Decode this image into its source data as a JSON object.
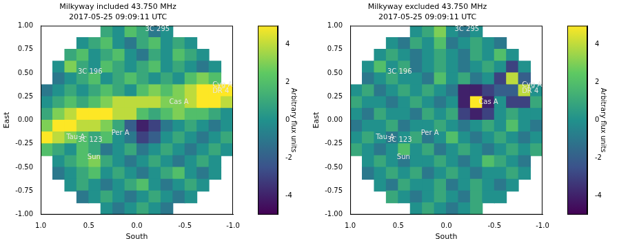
{
  "chart_data": [
    {
      "type": "heatmap",
      "title": "Milkyway included 43.750 MHz",
      "subtitle": "2017-05-25 09:09:11 UTC",
      "x_label": "South",
      "y_label": "East",
      "xlim": [
        1,
        -1
      ],
      "ylim": [
        -1,
        1
      ],
      "xticks": [
        {
          "value": 1,
          "label": "1.0"
        },
        {
          "value": 0.5,
          "label": "0.5"
        },
        {
          "value": 0,
          "label": "0.0"
        },
        {
          "value": -0.5,
          "label": "-0.5"
        },
        {
          "value": -1,
          "label": "-1.0"
        }
      ],
      "yticks": [
        {
          "value": -1,
          "label": "-1.00"
        },
        {
          "value": -0.75,
          "label": "-0.75"
        },
        {
          "value": -0.5,
          "label": "-0.50"
        },
        {
          "value": -0.25,
          "label": "-0.25"
        },
        {
          "value": 0,
          "label": "0.00"
        },
        {
          "value": 0.25,
          "label": "0.25"
        },
        {
          "value": 0.5,
          "label": "0.50"
        },
        {
          "value": 0.75,
          "label": "0.75"
        },
        {
          "value": 1,
          "label": "1.00"
        }
      ],
      "grid": false,
      "cell_x": [
        0.9375,
        0.8125,
        0.6875,
        0.5625,
        0.4375,
        0.3125,
        0.1875,
        0.0625,
        -0.0625,
        -0.1875,
        -0.3125,
        -0.4375,
        -0.5625,
        -0.6875,
        -0.8125,
        -0.9375
      ],
      "cell_y": [
        0.9375,
        0.8125,
        0.6875,
        0.5625,
        0.4375,
        0.3125,
        0.1875,
        0.0625,
        -0.0625,
        -0.1875,
        -0.3125,
        -0.4375,
        -0.5625,
        -0.6875,
        -0.8125,
        -0.9375
      ],
      "cells": [
        [
          null,
          null,
          null,
          null,
          null,
          1,
          0,
          2,
          1,
          -1,
          0,
          null,
          null,
          null,
          null,
          null
        ],
        [
          null,
          null,
          null,
          0,
          1,
          2,
          0,
          -1,
          1,
          2,
          0,
          1,
          0,
          null,
          null,
          null
        ],
        [
          null,
          null,
          1,
          2,
          0,
          1,
          2,
          0,
          -1,
          1,
          0,
          2,
          1,
          0,
          null,
          null
        ],
        [
          null,
          0,
          3,
          1,
          0,
          2,
          1,
          0,
          1,
          2,
          0,
          1,
          0,
          -1,
          0,
          null
        ],
        [
          null,
          -1,
          0,
          1,
          2,
          0,
          1,
          2,
          1,
          0,
          1,
          0,
          2,
          3,
          2,
          null
        ],
        [
          -1,
          0,
          1,
          0,
          1,
          2,
          1,
          0,
          2,
          3,
          2,
          3,
          4,
          5,
          5,
          5
        ],
        [
          0,
          1,
          2,
          1,
          2,
          3,
          4,
          4,
          4,
          4,
          3,
          3,
          4,
          5,
          5,
          4
        ],
        [
          1,
          3,
          4,
          5,
          5,
          5,
          4,
          4,
          2,
          1,
          2,
          3,
          2,
          2,
          1,
          0
        ],
        [
          3,
          5,
          5,
          4,
          4,
          3,
          1,
          -2,
          -4,
          -3,
          -1,
          0,
          1,
          0,
          -1,
          0
        ],
        [
          5,
          4,
          3,
          2,
          1,
          2,
          0,
          -1,
          -3,
          -2,
          0,
          1,
          0,
          -1,
          0,
          1
        ],
        [
          2,
          1,
          0,
          2,
          1,
          -1,
          0,
          1,
          -1,
          0,
          1,
          0,
          -1,
          0,
          1,
          0
        ],
        [
          null,
          0,
          1,
          2,
          3,
          1,
          0,
          -1,
          0,
          1,
          0,
          -1,
          0,
          1,
          0,
          null
        ],
        [
          null,
          -1,
          0,
          1,
          2,
          0,
          1,
          0,
          -1,
          0,
          1,
          2,
          0,
          -1,
          0,
          null
        ],
        [
          null,
          null,
          0,
          1,
          0,
          -1,
          0,
          1,
          2,
          0,
          -1,
          0,
          1,
          0,
          null,
          null
        ],
        [
          null,
          null,
          null,
          -1,
          0,
          1,
          0,
          -1,
          0,
          1,
          0,
          -1,
          0,
          null,
          null,
          null
        ],
        [
          null,
          null,
          null,
          null,
          null,
          0,
          -1,
          0,
          1,
          0,
          -1,
          null,
          null,
          null,
          null,
          null
        ]
      ],
      "colorbar": {
        "label": "Arbitrary flux units",
        "range": [
          -5,
          5
        ],
        "ticks": [
          -4,
          -2,
          0,
          2,
          4
        ]
      },
      "sources": [
        {
          "name": "3C 295",
          "x": -0.05,
          "y": 0.96
        },
        {
          "name": "3C 196",
          "x": 0.65,
          "y": 0.51
        },
        {
          "name": "Cas A",
          "x": -0.3,
          "y": 0.19
        },
        {
          "name": "Cyg A",
          "x": -0.75,
          "y": 0.37
        },
        {
          "name": "DR 4",
          "x": -0.75,
          "y": 0.31
        },
        {
          "name": "Tau A",
          "x": 0.77,
          "y": -0.18
        },
        {
          "name": "3C 123",
          "x": 0.65,
          "y": -0.21
        },
        {
          "name": "Per A",
          "x": 0.3,
          "y": -0.14
        },
        {
          "name": "Sun",
          "x": 0.55,
          "y": -0.39
        }
      ]
    },
    {
      "type": "heatmap",
      "title": "Milkyway excluded 43.750 MHz",
      "subtitle": "2017-05-25 09:09:11 UTC",
      "x_label": "South",
      "y_label": "East",
      "xlim": [
        1,
        -1
      ],
      "ylim": [
        -1,
        1
      ],
      "xticks": [
        {
          "value": 1,
          "label": "1.0"
        },
        {
          "value": 0.5,
          "label": "0.5"
        },
        {
          "value": 0,
          "label": "0.0"
        },
        {
          "value": -0.5,
          "label": "-0.5"
        },
        {
          "value": -1,
          "label": "-1.0"
        }
      ],
      "yticks": [
        {
          "value": -1,
          "label": "-1.00"
        },
        {
          "value": -0.75,
          "label": "-0.75"
        },
        {
          "value": -0.5,
          "label": "-0.50"
        },
        {
          "value": -0.25,
          "label": "-0.25"
        },
        {
          "value": 0,
          "label": "0.00"
        },
        {
          "value": 0.25,
          "label": "0.25"
        },
        {
          "value": 0.5,
          "label": "0.50"
        },
        {
          "value": 0.75,
          "label": "0.75"
        },
        {
          "value": 1,
          "label": "1.00"
        }
      ],
      "grid": false,
      "cell_x": [
        0.9375,
        0.8125,
        0.6875,
        0.5625,
        0.4375,
        0.3125,
        0.1875,
        0.0625,
        -0.0625,
        -0.1875,
        -0.3125,
        -0.4375,
        -0.5625,
        -0.6875,
        -0.8125,
        -0.9375
      ],
      "cell_y": [
        0.9375,
        0.8125,
        0.6875,
        0.5625,
        0.4375,
        0.3125,
        0.1875,
        0.0625,
        -0.0625,
        -0.1875,
        -0.3125,
        -0.4375,
        -0.5625,
        -0.6875,
        -0.8125,
        -0.9375
      ],
      "cells": [
        [
          null,
          null,
          null,
          null,
          null,
          0,
          1,
          3,
          0,
          -1,
          0,
          null,
          null,
          null,
          null,
          null
        ],
        [
          null,
          null,
          null,
          0,
          -1,
          1,
          0,
          2,
          -1,
          0,
          1,
          0,
          -1,
          null,
          null,
          null
        ],
        [
          null,
          null,
          0,
          1,
          0,
          -1,
          0,
          1,
          0,
          -1,
          1,
          0,
          2,
          0,
          null,
          null
        ],
        [
          null,
          0,
          2,
          0,
          1,
          -1,
          0,
          1,
          0,
          -1,
          0,
          1,
          0,
          -3,
          0,
          null
        ],
        [
          null,
          -1,
          0,
          1,
          0,
          0,
          -1,
          2,
          0,
          1,
          -1,
          0,
          -3,
          4,
          -2,
          null
        ],
        [
          0,
          1,
          -1,
          0,
          1,
          0,
          1,
          0,
          -1,
          -4,
          -4,
          -3,
          -2,
          -2,
          4,
          0
        ],
        [
          1,
          0,
          0,
          -1,
          0,
          1,
          0,
          -1,
          0,
          -4,
          5,
          -4,
          0,
          -3,
          -3,
          1
        ],
        [
          0,
          -1,
          1,
          0,
          0,
          -1,
          1,
          0,
          1,
          -3,
          -4,
          -3,
          0,
          1,
          0,
          0
        ],
        [
          -1,
          0,
          0,
          1,
          -1,
          0,
          0,
          1,
          0,
          -1,
          0,
          1,
          0,
          2,
          0,
          -1
        ],
        [
          0,
          1,
          0,
          -1,
          0,
          1,
          -1,
          0,
          2,
          0,
          -1,
          0,
          1,
          0,
          -1,
          0
        ],
        [
          1,
          0,
          -1,
          0,
          2,
          0,
          1,
          -1,
          0,
          1,
          0,
          -1,
          0,
          1,
          0,
          1
        ],
        [
          null,
          0,
          1,
          0,
          -1,
          0,
          0,
          1,
          0,
          -1,
          0,
          2,
          1,
          0,
          -1,
          null
        ],
        [
          null,
          -1,
          0,
          1,
          0,
          1,
          -1,
          0,
          1,
          0,
          -1,
          0,
          0,
          1,
          0,
          null
        ],
        [
          null,
          null,
          0,
          -1,
          1,
          0,
          0,
          1,
          -1,
          0,
          1,
          0,
          -1,
          0,
          null,
          null
        ],
        [
          null,
          null,
          null,
          1,
          0,
          -1,
          0,
          1,
          0,
          -1,
          1,
          0,
          0,
          null,
          null,
          null
        ],
        [
          null,
          null,
          null,
          null,
          null,
          0,
          1,
          0,
          -1,
          0,
          1,
          null,
          null,
          null,
          null,
          null
        ]
      ],
      "colorbar": {
        "label": "Arbitrary flux units",
        "range": [
          -5,
          5
        ],
        "ticks": [
          -4,
          -2,
          0,
          2,
          4
        ]
      },
      "sources": [
        {
          "name": "3C 295",
          "x": -0.05,
          "y": 0.96
        },
        {
          "name": "3C 196",
          "x": 0.65,
          "y": 0.51
        },
        {
          "name": "Cas A",
          "x": -0.3,
          "y": 0.19
        },
        {
          "name": "Cyg A",
          "x": -0.75,
          "y": 0.37
        },
        {
          "name": "DR 4",
          "x": -0.75,
          "y": 0.31
        },
        {
          "name": "Tau A",
          "x": 0.77,
          "y": -0.18
        },
        {
          "name": "3C 123",
          "x": 0.65,
          "y": -0.21
        },
        {
          "name": "Per A",
          "x": 0.3,
          "y": -0.14
        },
        {
          "name": "Sun",
          "x": 0.55,
          "y": -0.39
        }
      ]
    }
  ]
}
